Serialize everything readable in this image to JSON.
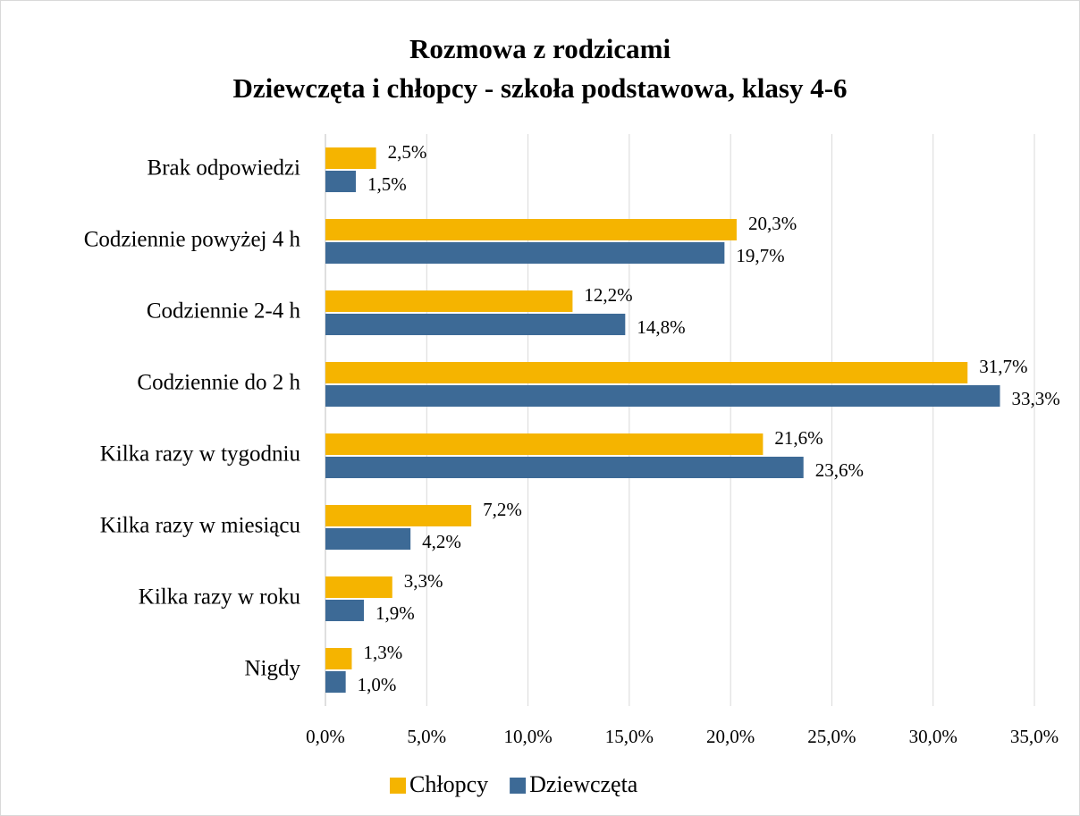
{
  "chart_data": {
    "type": "bar",
    "orientation": "horizontal",
    "title": [
      "Rozmowa z rodzicami",
      "Dziewczęta i chłopcy - szkoła podstawowa, klasy 4-6"
    ],
    "categories": [
      "Brak odpowiedzi",
      "Codziennie powyżej 4 h",
      "Codziennie 2-4 h",
      "Codziennie do 2 h",
      "Kilka razy w tygodniu",
      "Kilka razy w miesiącu",
      "Kilka razy w roku",
      "Nigdy"
    ],
    "series": [
      {
        "name": "Chłopcy",
        "color": "#f5b400",
        "values": [
          2.5,
          20.3,
          12.2,
          31.7,
          21.6,
          7.2,
          3.3,
          1.3
        ],
        "value_labels": [
          "2,5%",
          "20,3%",
          "12,2%",
          "31,7%",
          "21,6%",
          "7,2%",
          "3,3%",
          "1,3%"
        ]
      },
      {
        "name": "Dziewczęta",
        "color": "#3d6a96",
        "values": [
          1.5,
          19.7,
          14.8,
          33.3,
          23.6,
          4.2,
          1.9,
          1.0
        ],
        "value_labels": [
          "1,5%",
          "19,7%",
          "14,8%",
          "33,3%",
          "23,6%",
          "4,2%",
          "1,9%",
          "1,0%"
        ]
      }
    ],
    "xlim": [
      0,
      35
    ],
    "xticks": [
      {
        "value": 0,
        "label": "0,0%"
      },
      {
        "value": 5,
        "label": "5,0%"
      },
      {
        "value": 10,
        "label": "10,0%"
      },
      {
        "value": 15,
        "label": "15,0%"
      },
      {
        "value": 20,
        "label": "20,0%"
      },
      {
        "value": 25,
        "label": "25,0%"
      },
      {
        "value": 30,
        "label": "30,0%"
      },
      {
        "value": 35,
        "label": "35,0%"
      }
    ],
    "grid": true,
    "legend": "bottom"
  }
}
